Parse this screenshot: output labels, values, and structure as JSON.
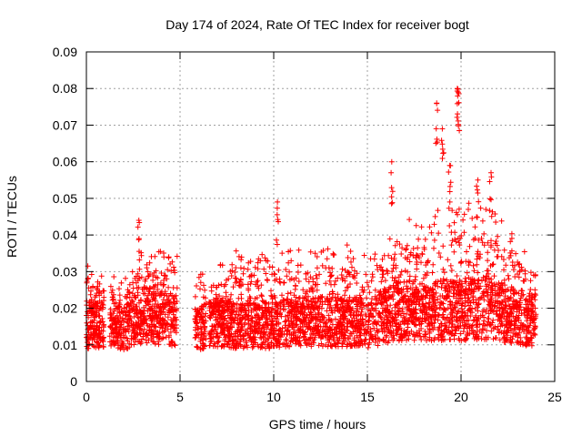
{
  "chart_data": {
    "type": "scatter",
    "title": "Day 174 of 2024, Rate Of TEC Index for receiver bogt",
    "xlabel": "GPS time / hours",
    "ylabel": "ROTI / TECUs",
    "xlim": [
      0,
      25
    ],
    "ylim": [
      0,
      0.09
    ],
    "xticks": [
      "0",
      "5",
      "10",
      "15",
      "20",
      "25"
    ],
    "yticks": [
      "0",
      "0.01",
      "0.02",
      "0.03",
      "0.04",
      "0.05",
      "0.06",
      "0.07",
      "0.08",
      "0.09"
    ],
    "grid": true,
    "marker": "+",
    "series": [
      {
        "name": "ROTI",
        "color": "#ff0000",
        "data_gaps_hours": [
          [
            0.95,
            1.25
          ],
          [
            4.85,
            5.8
          ],
          [
            6.4,
            6.55
          ]
        ],
        "envelope_hours": [
          0,
          1,
          2,
          3,
          4,
          5,
          6,
          7,
          8,
          9,
          10,
          11,
          12,
          13,
          14,
          15,
          16,
          17,
          18,
          19,
          20,
          21,
          22,
          23,
          24
        ],
        "envelope_typical": [
          0.012,
          0.012,
          0.011,
          0.015,
          0.014,
          0.013,
          0.011,
          0.013,
          0.012,
          0.012,
          0.012,
          0.013,
          0.013,
          0.013,
          0.013,
          0.012,
          0.015,
          0.016,
          0.015,
          0.016,
          0.016,
          0.017,
          0.016,
          0.014,
          0.013
        ],
        "envelope_upper": [
          0.032,
          0.03,
          0.028,
          0.037,
          0.036,
          0.04,
          0.03,
          0.032,
          0.036,
          0.034,
          0.036,
          0.037,
          0.037,
          0.037,
          0.038,
          0.034,
          0.04,
          0.044,
          0.046,
          0.05,
          0.048,
          0.05,
          0.045,
          0.04,
          0.03
        ],
        "notable_peaks": [
          {
            "x": 2.8,
            "y": 0.044
          },
          {
            "x": 10.2,
            "y": 0.049
          },
          {
            "x": 16.3,
            "y": 0.06
          },
          {
            "x": 18.7,
            "y": 0.076
          },
          {
            "x": 19.0,
            "y": 0.069
          },
          {
            "x": 19.4,
            "y": 0.059
          },
          {
            "x": 19.8,
            "y": 0.08
          },
          {
            "x": 19.85,
            "y": 0.079
          },
          {
            "x": 21.6,
            "y": 0.057
          },
          {
            "x": 20.9,
            "y": 0.055
          }
        ]
      }
    ]
  }
}
